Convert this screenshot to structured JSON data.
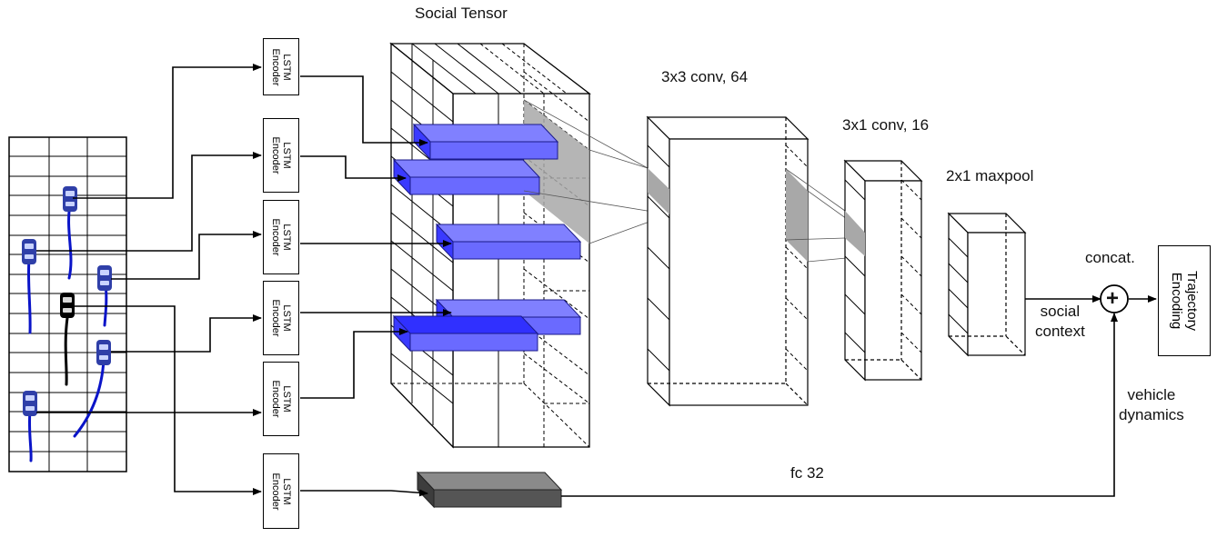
{
  "title": "Social Tensor",
  "layers": {
    "conv1": "3x3 conv, 64",
    "conv2": "3x1 conv, 16",
    "pool": "2x1 maxpool",
    "fc": "fc 32"
  },
  "encoder": {
    "line1": "LSTM",
    "line2": "Encoder"
  },
  "labels": {
    "concat": "concat.",
    "social_line1": "social",
    "social_line2": "context",
    "dynamics_line1": "vehicle",
    "dynamics_line2": "dynamics",
    "plus": "+"
  },
  "output": {
    "line1": "Trajectory",
    "line2": "Encoding"
  },
  "colors": {
    "blue": "#4b4bff",
    "blue_face": "#6a6aff",
    "gray": "#a8a8a8",
    "dark": "#555555",
    "car_blue": "#2f3fa8",
    "car_black": "#000000",
    "track": "#0a14c8"
  }
}
